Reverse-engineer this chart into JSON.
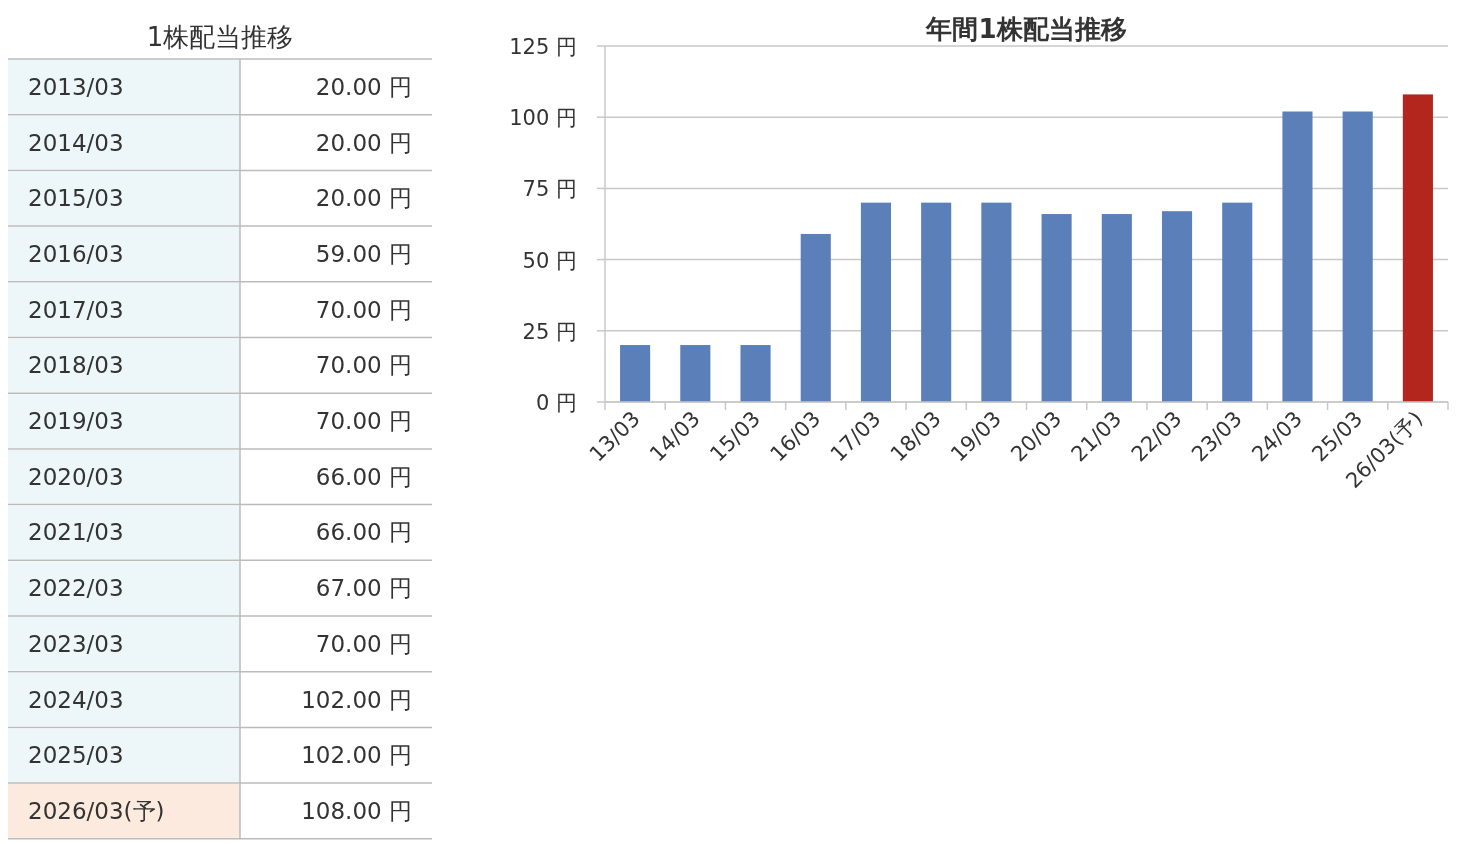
{
  "chart_data": [
    {
      "type": "other",
      "title": "1株配当推移",
      "categories": [
        "2013/03",
        "2014/03",
        "2015/03",
        "2016/03",
        "2017/03",
        "2018/03",
        "2019/03",
        "2020/03",
        "2021/03",
        "2022/03",
        "2023/03",
        "2024/03",
        "2025/03",
        "2026/03(予)"
      ],
      "values": [
        20,
        20,
        20,
        59,
        70,
        70,
        70,
        66,
        66,
        67,
        70,
        102,
        102,
        108
      ],
      "value_labels": [
        "20.00 円",
        "20.00 円",
        "20.00 円",
        "59.00 円",
        "70.00 円",
        "70.00 円",
        "70.00 円",
        "66.00 円",
        "66.00 円",
        "67.00 円",
        "70.00 円",
        "102.00 円",
        "102.00 円",
        "108.00 円"
      ],
      "colors": [
        "#edf6f8",
        "#edf6f8",
        "#edf6f8",
        "#edf6f8",
        "#edf6f8",
        "#edf6f8",
        "#edf6f8",
        "#edf6f8",
        "#edf6f8",
        "#edf6f8",
        "#edf6f8",
        "#edf6f8",
        "#edf6f8",
        "#fbeadd"
      ]
    },
    {
      "type": "bar",
      "title": "年間1株配当推移",
      "categories": [
        "13/03",
        "14/03",
        "15/03",
        "16/03",
        "17/03",
        "18/03",
        "19/03",
        "20/03",
        "21/03",
        "22/03",
        "23/03",
        "24/03",
        "25/03",
        "26/03(予)"
      ],
      "values": [
        20,
        20,
        20,
        59,
        70,
        70,
        70,
        66,
        66,
        67,
        70,
        102,
        102,
        108
      ],
      "colors": [
        "#5b80b9",
        "#5b80b9",
        "#5b80b9",
        "#5b80b9",
        "#5b80b9",
        "#5b80b9",
        "#5b80b9",
        "#5b80b9",
        "#5b80b9",
        "#5b80b9",
        "#5b80b9",
        "#5b80b9",
        "#5b80b9",
        "#b2261d"
      ],
      "ylim": [
        0,
        125
      ],
      "yticks": [
        {
          "value": 0,
          "label": "0 円"
        },
        {
          "value": 25,
          "label": "25 円"
        },
        {
          "value": 50,
          "label": "50 円"
        },
        {
          "value": 75,
          "label": "75 円"
        },
        {
          "value": 100,
          "label": "100 円"
        },
        {
          "value": 125,
          "label": "125 円"
        }
      ],
      "grid": "y"
    }
  ]
}
